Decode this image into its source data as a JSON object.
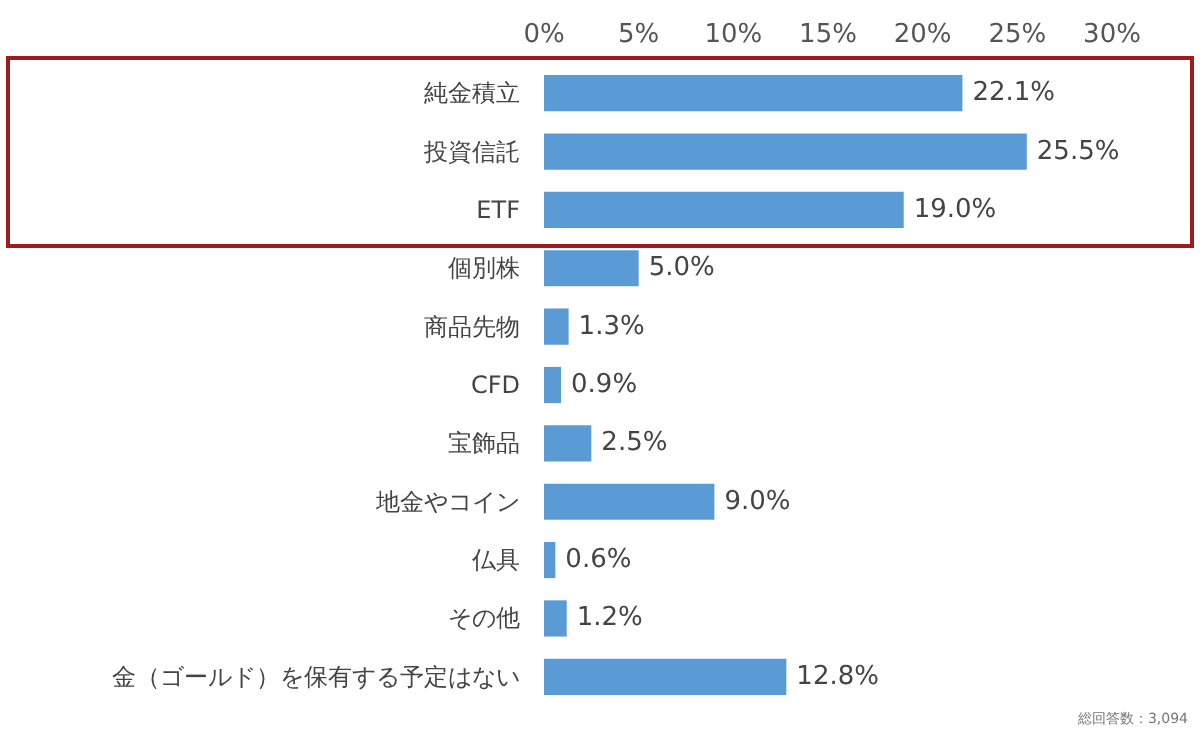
{
  "chart_data": {
    "type": "bar",
    "orientation": "horizontal",
    "categories": [
      "純金積立",
      "投資信託",
      "ETF",
      "個別株",
      "商品先物",
      "CFD",
      "宝飾品",
      "地金やコイン",
      "仏具",
      "その他",
      "金（ゴールド）を保有する予定はない"
    ],
    "values": [
      22.1,
      25.5,
      19.0,
      5.0,
      1.3,
      0.9,
      2.5,
      9.0,
      0.6,
      1.2,
      12.8
    ],
    "value_labels": [
      "22.1%",
      "25.5%",
      "19.0%",
      "5.0%",
      "1.3%",
      "0.9%",
      "2.5%",
      "9.0%",
      "0.6%",
      "1.2%",
      "12.8%"
    ],
    "color": "#5b9bd5",
    "xlim": [
      0,
      30
    ],
    "xticks": [
      {
        "value": 0,
        "label": "0%"
      },
      {
        "value": 5,
        "label": "5%"
      },
      {
        "value": 10,
        "label": "10%"
      },
      {
        "value": 15,
        "label": "15%"
      },
      {
        "value": 20,
        "label": "20%"
      },
      {
        "value": 25,
        "label": "25%"
      },
      {
        "value": 30,
        "label": "30%"
      }
    ],
    "grid": false,
    "annotations": [
      "総回答数：3,094"
    ]
  }
}
